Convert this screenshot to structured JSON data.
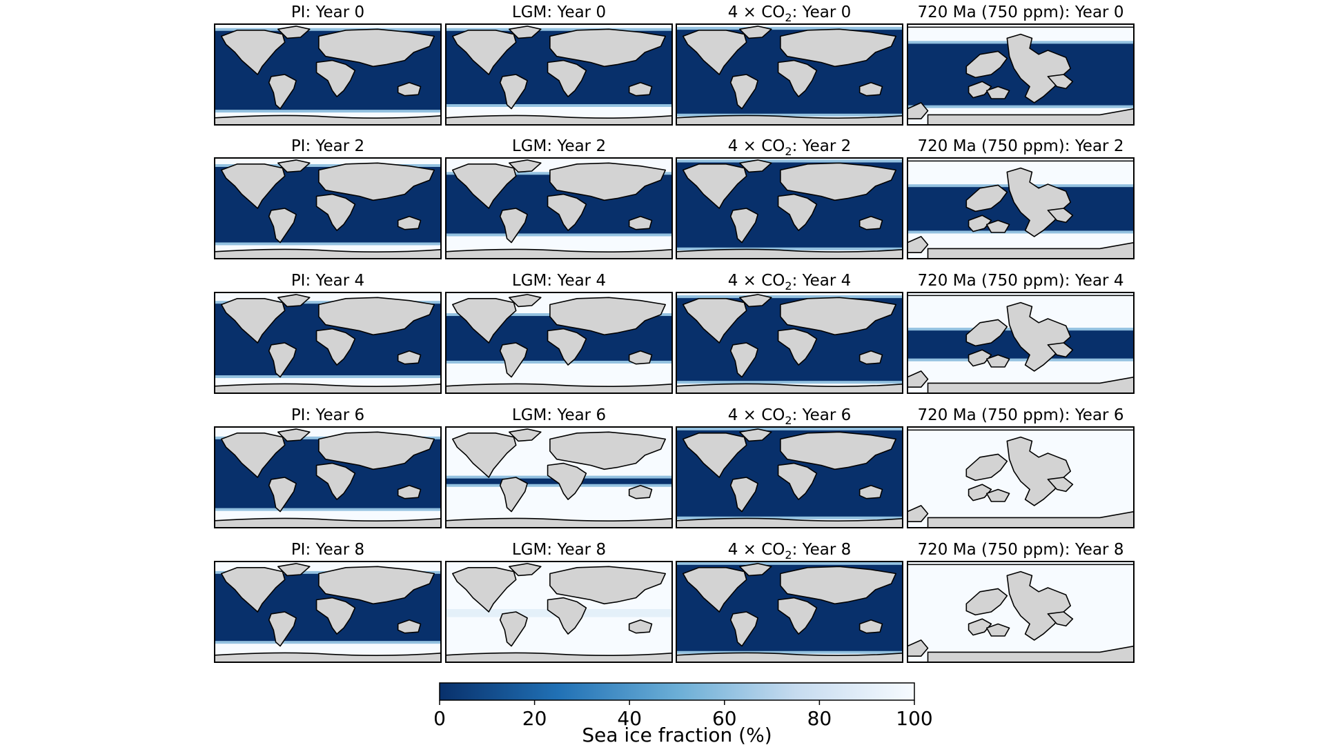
{
  "figure": {
    "colorbar": {
      "label": "Sea ice fraction (%)",
      "ticks": [
        "0",
        "20",
        "40",
        "60",
        "80",
        "100"
      ],
      "range": [
        0,
        100
      ],
      "colormap": "Blues_r",
      "colors": {
        "low": "#08306b",
        "mid": "#4292c6",
        "high": "#f7fbff"
      }
    },
    "land_color": "#d3d3d3",
    "coastline_color": "#000000"
  },
  "chart_data": {
    "type": "heatmap",
    "variable": "Sea ice fraction (%)",
    "value_range": [
      0,
      100
    ],
    "scenarios": [
      {
        "title": "PI",
        "map": "modern"
      },
      {
        "title": "LGM",
        "map": "modern"
      },
      {
        "title_prefix": "4 × CO",
        "title_sub": "2",
        "map": "modern"
      },
      {
        "title": "720 Ma (750 ppm)",
        "map": "neoproterozoic"
      }
    ],
    "years": [
      "Year 0",
      "Year 2",
      "Year 4",
      "Year 6",
      "Year 8"
    ],
    "panels": [
      [
        {
          "ice_lat": [
            -63,
            78
          ],
          "mid_frac": 0.85
        },
        {
          "ice_lat": [
            -53,
            78
          ],
          "mid_frac": 0.75
        },
        {
          "ice_lat": [
            -70,
            80
          ],
          "mid_frac": 0.8
        },
        {
          "ice_lat": [
            -55,
            55
          ],
          "mid_frac": 0.8
        }
      ],
      [
        {
          "ice_lat": [
            -61,
            74
          ],
          "mid_frac": 0.85
        },
        {
          "ice_lat": [
            -45,
            60
          ],
          "mid_frac": 0.75
        },
        {
          "ice_lat": [
            -70,
            82
          ],
          "mid_frac": 0.8
        },
        {
          "ice_lat": [
            -40,
            38
          ],
          "mid_frac": 0.8
        }
      ],
      [
        {
          "ice_lat": [
            -58,
            70
          ],
          "mid_frac": 0.85
        },
        {
          "ice_lat": [
            -32,
            48
          ],
          "mid_frac": 0.7
        },
        {
          "ice_lat": [
            -68,
            80
          ],
          "mid_frac": 0.8
        },
        {
          "ice_lat": [
            -28,
            22
          ],
          "mid_frac": 0.8
        }
      ],
      [
        {
          "ice_lat": [
            -55,
            68
          ],
          "mid_frac": 0.85
        },
        {
          "ice_lat": [
            -12,
            -2
          ],
          "mid_frac": 0.7
        },
        {
          "ice_lat": [
            -70,
            84
          ],
          "mid_frac": 0.8
        },
        {
          "ice_lat": [
            0,
            0
          ],
          "mid_frac": 0.8
        }
      ],
      [
        {
          "ice_lat": [
            -52,
            68
          ],
          "mid_frac": 0.85
        },
        {
          "ice_lat": [
            0,
            0
          ],
          "mid_frac": 0.7
        },
        {
          "ice_lat": [
            -70,
            84
          ],
          "mid_frac": 0.8
        },
        {
          "ice_lat": [
            0,
            0
          ],
          "mid_frac": 0.8
        }
      ]
    ],
    "note_units": "ice_lat values are latitudes (degrees) bounding the ice-free ocean band"
  }
}
